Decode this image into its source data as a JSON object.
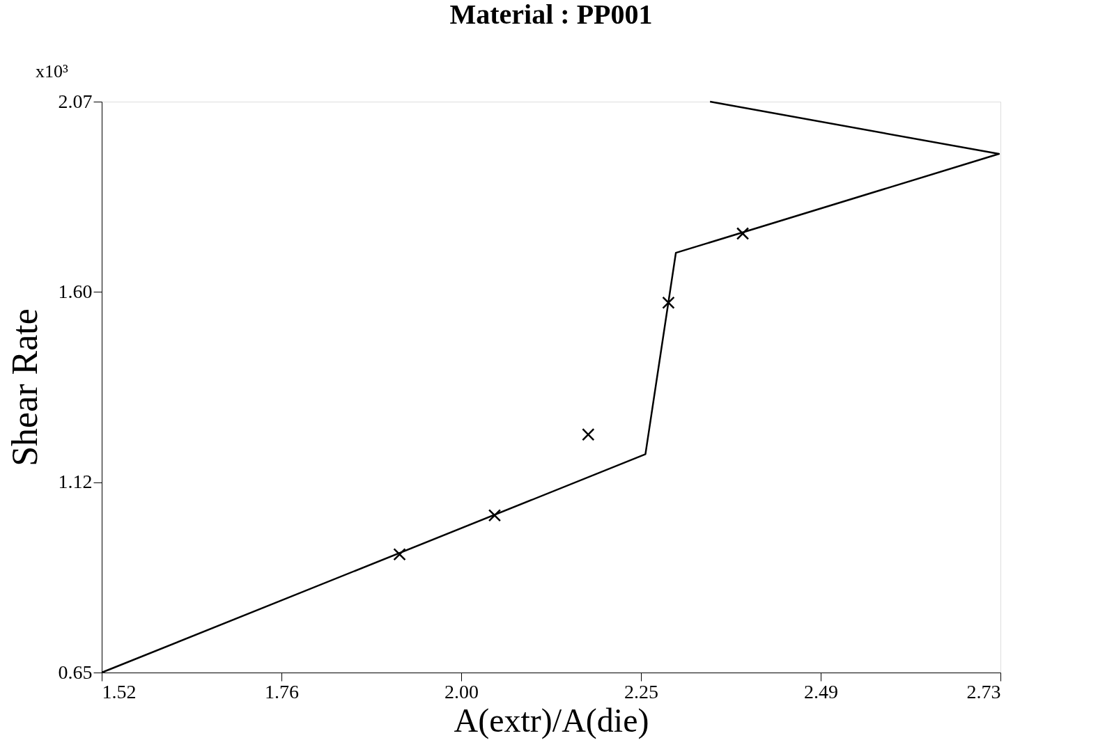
{
  "chart_data": {
    "type": "line",
    "title": "Material :    PP001",
    "xlabel": "A(extr)/A(die)",
    "ylabel": "Shear Rate",
    "annotations": [
      "x10³"
    ],
    "xlim": [
      1.52,
      2.73
    ],
    "ylim": [
      0.65,
      2.07
    ],
    "xticks": [
      1.52,
      {
        "value": 1.762,
        "label": "1.76"
      },
      {
        "value": 2.004,
        "label": "2.00"
      },
      {
        "value": 2.246,
        "label": "2.25"
      },
      {
        "value": 2.488,
        "label": "2.49"
      },
      2.73
    ],
    "yticks": [
      0.65,
      {
        "value": 1.123,
        "label": "1.12"
      },
      {
        "value": 1.597,
        "label": "1.60"
      },
      2.07
    ],
    "grid": false,
    "series": [
      {
        "color": "#000000",
        "marker": "none",
        "line_style": "solid",
        "x": [
          1.52,
          2.252,
          2.293,
          2.728,
          2.339
        ],
        "values": [
          0.65,
          1.193,
          1.694,
          1.94,
          2.07
        ]
      },
      {
        "type": "scatter",
        "color": "#000000",
        "marker": "cross",
        "x": [
          1.921,
          2.049,
          2.175,
          2.283,
          2.383
        ],
        "values": [
          0.944,
          1.041,
          1.242,
          1.57,
          1.742
        ]
      }
    ]
  }
}
